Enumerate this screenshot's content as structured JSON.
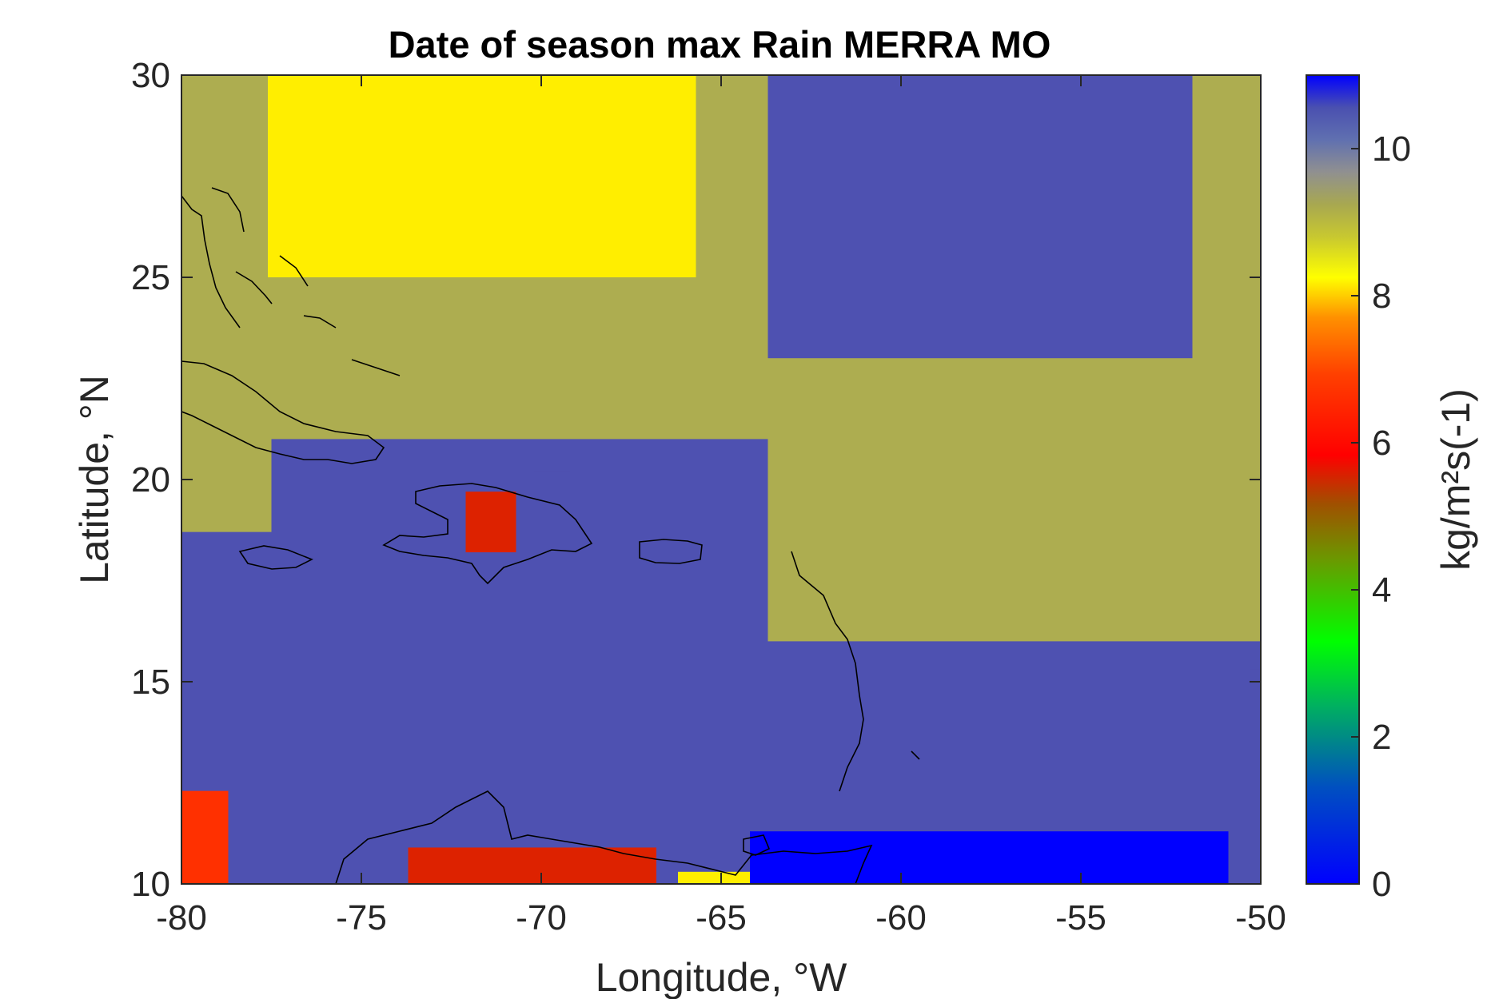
{
  "chart_data": {
    "type": "heatmap",
    "title": "Date of season max Rain MERRA MO",
    "xlabel": "Longitude, °W",
    "ylabel": "Latitude, °N",
    "xlim": [
      -80,
      -50
    ],
    "ylim": [
      10,
      30
    ],
    "xticks": [
      -80,
      -75,
      -70,
      -65,
      -60,
      -55,
      -50
    ],
    "yticks": [
      10,
      15,
      20,
      25,
      30
    ],
    "colorbar": {
      "label": "kg/m²s(-1)",
      "range": [
        0,
        11
      ],
      "ticks": [
        0,
        2,
        4,
        6,
        8,
        10
      ],
      "colormap": "rainbow (blue-green-yellow-red-olive-grey-blue)"
    },
    "grid": false,
    "coastlines": true,
    "cells": [
      {
        "lon": [
          -80,
          -50
        ],
        "lat": [
          10,
          30
        ],
        "value": 10.6
      },
      {
        "lon": [
          -80,
          -77.5
        ],
        "lat": [
          18.7,
          30
        ],
        "value": 9.0
      },
      {
        "lon": [
          -77.5,
          -63.7
        ],
        "lat": [
          21,
          30
        ],
        "value": 9.0
      },
      {
        "lon": [
          -63.7,
          -50
        ],
        "lat": [
          16,
          30
        ],
        "value": 9.0
      },
      {
        "lon": [
          -77.6,
          -65.7
        ],
        "lat": [
          25,
          30
        ],
        "value": 8.2
      },
      {
        "lon": [
          -63.7,
          -51.9
        ],
        "lat": [
          23,
          30
        ],
        "value": 10.6
      },
      {
        "lon": [
          -72.1,
          -70.7
        ],
        "lat": [
          18.2,
          19.7
        ],
        "value": 5.8
      },
      {
        "lon": [
          -80,
          -78.7
        ],
        "lat": [
          10,
          12.3
        ],
        "value": 6.0
      },
      {
        "lon": [
          -73.7,
          -66.8
        ],
        "lat": [
          10,
          10.9
        ],
        "value": 5.8
      },
      {
        "lon": [
          -66.2,
          -63.7
        ],
        "lat": [
          10,
          10.3
        ],
        "value": 8.2
      },
      {
        "lon": [
          -64.2,
          -50.9
        ],
        "lat": [
          10,
          11.3
        ],
        "value": 0.3
      }
    ]
  }
}
